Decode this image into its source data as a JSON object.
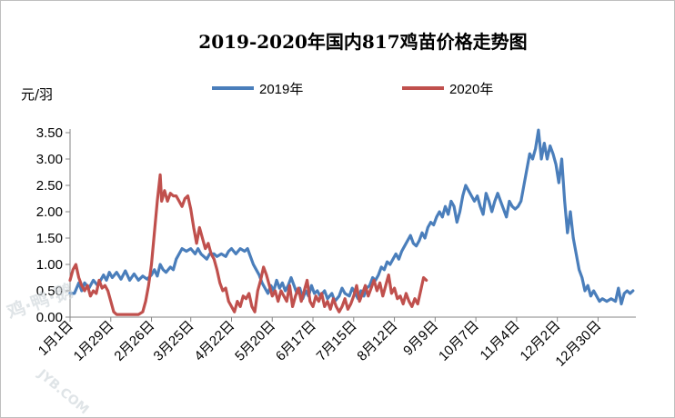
{
  "chart_data": {
    "type": "line",
    "title": "2019-2020年国内817鸡苗价格走势图",
    "ylabel": "元/羽",
    "xlabel": "",
    "ylim": [
      0,
      3.5
    ],
    "y_ticks": [
      "0.00",
      "0.50",
      "1.00",
      "1.50",
      "2.00",
      "2.50",
      "3.00",
      "3.50"
    ],
    "x_ticks": [
      "1月1日",
      "1月29日",
      "2月26日",
      "3月25日",
      "4月22日",
      "5月20日",
      "6月17日",
      "7月15日",
      "8月12日",
      "9月9日",
      "10月7日",
      "11月4日",
      "12月2日",
      "12月30日"
    ],
    "x_tick_days": [
      1,
      29,
      57,
      84,
      112,
      140,
      168,
      196,
      224,
      252,
      280,
      308,
      336,
      364
    ],
    "legend_position": "top",
    "grid": false,
    "series": [
      {
        "name": "2019年",
        "color": "#4a7ebb",
        "points": [
          [
            1,
            0.45
          ],
          [
            4,
            0.45
          ],
          [
            7,
            0.65
          ],
          [
            9,
            0.5
          ],
          [
            11,
            0.65
          ],
          [
            14,
            0.55
          ],
          [
            17,
            0.7
          ],
          [
            20,
            0.6
          ],
          [
            24,
            0.8
          ],
          [
            26,
            0.7
          ],
          [
            28,
            0.85
          ],
          [
            30,
            0.75
          ],
          [
            33,
            0.85
          ],
          [
            36,
            0.72
          ],
          [
            39,
            0.88
          ],
          [
            42,
            0.7
          ],
          [
            45,
            0.82
          ],
          [
            48,
            0.7
          ],
          [
            51,
            0.78
          ],
          [
            54,
            0.72
          ],
          [
            57,
            0.8
          ],
          [
            59,
            0.9
          ],
          [
            61,
            0.78
          ],
          [
            63,
            1.0
          ],
          [
            65,
            0.9
          ],
          [
            67,
            0.85
          ],
          [
            70,
            0.95
          ],
          [
            72,
            0.9
          ],
          [
            74,
            1.1
          ],
          [
            76,
            1.2
          ],
          [
            78,
            1.3
          ],
          [
            81,
            1.25
          ],
          [
            84,
            1.3
          ],
          [
            87,
            1.2
          ],
          [
            89,
            1.3
          ],
          [
            91,
            1.2
          ],
          [
            93,
            1.15
          ],
          [
            95,
            1.1
          ],
          [
            97,
            1.2
          ],
          [
            100,
            1.2
          ],
          [
            102,
            1.15
          ],
          [
            105,
            1.2
          ],
          [
            108,
            1.15
          ],
          [
            110,
            1.25
          ],
          [
            112,
            1.3
          ],
          [
            115,
            1.2
          ],
          [
            118,
            1.3
          ],
          [
            121,
            1.25
          ],
          [
            123,
            1.3
          ],
          [
            125,
            1.15
          ],
          [
            127,
            1.0
          ],
          [
            129,
            0.9
          ],
          [
            131,
            0.8
          ],
          [
            133,
            0.65
          ],
          [
            135,
            0.55
          ],
          [
            137,
            0.45
          ],
          [
            139,
            0.6
          ],
          [
            141,
            0.5
          ],
          [
            143,
            0.7
          ],
          [
            145,
            0.55
          ],
          [
            147,
            0.65
          ],
          [
            149,
            0.5
          ],
          [
            151,
            0.6
          ],
          [
            153,
            0.75
          ],
          [
            155,
            0.6
          ],
          [
            157,
            0.45
          ],
          [
            159,
            0.55
          ],
          [
            161,
            0.35
          ],
          [
            163,
            0.5
          ],
          [
            165,
            0.4
          ],
          [
            167,
            0.6
          ],
          [
            169,
            0.45
          ],
          [
            171,
            0.5
          ],
          [
            173,
            0.4
          ],
          [
            176,
            0.5
          ],
          [
            178,
            0.35
          ],
          [
            181,
            0.45
          ],
          [
            183,
            0.3
          ],
          [
            186,
            0.4
          ],
          [
            188,
            0.55
          ],
          [
            190,
            0.45
          ],
          [
            193,
            0.4
          ],
          [
            195,
            0.55
          ],
          [
            197,
            0.45
          ],
          [
            199,
            0.35
          ],
          [
            201,
            0.5
          ],
          [
            203,
            0.4
          ],
          [
            205,
            0.55
          ],
          [
            207,
            0.6
          ],
          [
            209,
            0.75
          ],
          [
            211,
            0.7
          ],
          [
            213,
            0.8
          ],
          [
            215,
            0.95
          ],
          [
            217,
            0.9
          ],
          [
            219,
            1.05
          ],
          [
            221,
            1.0
          ],
          [
            223,
            1.1
          ],
          [
            225,
            1.2
          ],
          [
            227,
            1.1
          ],
          [
            229,
            1.25
          ],
          [
            231,
            1.35
          ],
          [
            233,
            1.45
          ],
          [
            235,
            1.55
          ],
          [
            237,
            1.4
          ],
          [
            239,
            1.35
          ],
          [
            241,
            1.45
          ],
          [
            243,
            1.6
          ],
          [
            245,
            1.5
          ],
          [
            247,
            1.7
          ],
          [
            249,
            1.8
          ],
          [
            251,
            1.75
          ],
          [
            253,
            1.9
          ],
          [
            255,
            2.0
          ],
          [
            257,
            1.9
          ],
          [
            259,
            2.1
          ],
          [
            261,
            1.95
          ],
          [
            263,
            2.2
          ],
          [
            265,
            2.1
          ],
          [
            267,
            1.8
          ],
          [
            269,
            2.0
          ],
          [
            271,
            2.3
          ],
          [
            273,
            2.5
          ],
          [
            275,
            2.4
          ],
          [
            277,
            2.3
          ],
          [
            279,
            2.2
          ],
          [
            281,
            2.3
          ],
          [
            283,
            2.1
          ],
          [
            285,
            1.95
          ],
          [
            287,
            2.35
          ],
          [
            289,
            2.2
          ],
          [
            291,
            2.0
          ],
          [
            293,
            2.2
          ],
          [
            295,
            2.35
          ],
          [
            297,
            2.2
          ],
          [
            299,
            2.05
          ],
          [
            301,
            1.9
          ],
          [
            303,
            2.2
          ],
          [
            305,
            2.1
          ],
          [
            307,
            2.05
          ],
          [
            309,
            2.1
          ],
          [
            311,
            2.2
          ],
          [
            313,
            2.5
          ],
          [
            315,
            2.8
          ],
          [
            317,
            3.1
          ],
          [
            319,
            3.0
          ],
          [
            321,
            3.2
          ],
          [
            323,
            3.55
          ],
          [
            325,
            3.0
          ],
          [
            327,
            3.3
          ],
          [
            329,
            3.0
          ],
          [
            331,
            3.25
          ],
          [
            333,
            3.1
          ],
          [
            335,
            2.9
          ],
          [
            337,
            2.55
          ],
          [
            339,
            3.0
          ],
          [
            341,
            2.2
          ],
          [
            343,
            1.6
          ],
          [
            345,
            2.0
          ],
          [
            347,
            1.5
          ],
          [
            349,
            1.2
          ],
          [
            351,
            0.9
          ],
          [
            353,
            0.75
          ],
          [
            355,
            0.5
          ],
          [
            357,
            0.6
          ],
          [
            359,
            0.4
          ],
          [
            361,
            0.5
          ],
          [
            363,
            0.4
          ],
          [
            365,
            0.3
          ],
          [
            367,
            0.35
          ],
          [
            370,
            0.3
          ],
          [
            373,
            0.35
          ],
          [
            376,
            0.3
          ],
          [
            378,
            0.55
          ],
          [
            380,
            0.25
          ],
          [
            382,
            0.45
          ],
          [
            384,
            0.5
          ],
          [
            386,
            0.45
          ],
          [
            388,
            0.5
          ]
        ]
      },
      {
        "name": "2020年",
        "color": "#c0504d",
        "points": [
          [
            1,
            0.7
          ],
          [
            3,
            0.9
          ],
          [
            5,
            1.0
          ],
          [
            7,
            0.75
          ],
          [
            9,
            0.6
          ],
          [
            11,
            0.5
          ],
          [
            13,
            0.6
          ],
          [
            15,
            0.4
          ],
          [
            17,
            0.5
          ],
          [
            19,
            0.45
          ],
          [
            21,
            0.7
          ],
          [
            23,
            0.55
          ],
          [
            25,
            0.6
          ],
          [
            27,
            0.5
          ],
          [
            29,
            0.3
          ],
          [
            31,
            0.1
          ],
          [
            33,
            0.05
          ],
          [
            36,
            0.05
          ],
          [
            40,
            0.05
          ],
          [
            44,
            0.05
          ],
          [
            48,
            0.05
          ],
          [
            51,
            0.1
          ],
          [
            53,
            0.3
          ],
          [
            55,
            0.6
          ],
          [
            57,
            1.0
          ],
          [
            59,
            1.6
          ],
          [
            61,
            2.2
          ],
          [
            63,
            2.7
          ],
          [
            64,
            2.2
          ],
          [
            66,
            2.4
          ],
          [
            68,
            2.2
          ],
          [
            70,
            2.35
          ],
          [
            72,
            2.3
          ],
          [
            74,
            2.3
          ],
          [
            76,
            2.2
          ],
          [
            78,
            2.1
          ],
          [
            80,
            2.25
          ],
          [
            82,
            2.3
          ],
          [
            84,
            2.05
          ],
          [
            86,
            1.7
          ],
          [
            88,
            1.4
          ],
          [
            90,
            1.7
          ],
          [
            92,
            1.5
          ],
          [
            94,
            1.3
          ],
          [
            96,
            1.4
          ],
          [
            98,
            1.2
          ],
          [
            100,
            1.1
          ],
          [
            102,
            0.9
          ],
          [
            104,
            0.65
          ],
          [
            106,
            0.5
          ],
          [
            108,
            0.55
          ],
          [
            110,
            0.3
          ],
          [
            112,
            0.2
          ],
          [
            114,
            0.1
          ],
          [
            116,
            0.3
          ],
          [
            118,
            0.2
          ],
          [
            120,
            0.4
          ],
          [
            122,
            0.35
          ],
          [
            124,
            0.45
          ],
          [
            126,
            0.2
          ],
          [
            128,
            0.1
          ],
          [
            130,
            0.5
          ],
          [
            132,
            0.7
          ],
          [
            134,
            0.95
          ],
          [
            136,
            0.8
          ],
          [
            138,
            0.6
          ],
          [
            140,
            0.4
          ],
          [
            142,
            0.5
          ],
          [
            144,
            0.3
          ],
          [
            146,
            0.5
          ],
          [
            148,
            0.4
          ],
          [
            150,
            0.3
          ],
          [
            152,
            0.6
          ],
          [
            154,
            0.2
          ],
          [
            156,
            0.4
          ],
          [
            158,
            0.55
          ],
          [
            160,
            0.3
          ],
          [
            162,
            0.5
          ],
          [
            164,
            0.7
          ],
          [
            166,
            0.3
          ],
          [
            168,
            0.2
          ],
          [
            170,
            0.4
          ],
          [
            172,
            0.3
          ],
          [
            174,
            0.45
          ],
          [
            176,
            0.2
          ],
          [
            178,
            0.3
          ],
          [
            180,
            0.15
          ],
          [
            182,
            0.35
          ],
          [
            184,
            0.2
          ],
          [
            186,
            0.1
          ],
          [
            188,
            0.2
          ],
          [
            190,
            0.35
          ],
          [
            192,
            0.15
          ],
          [
            194,
            0.25
          ],
          [
            196,
            0.4
          ],
          [
            198,
            0.6
          ],
          [
            200,
            0.3
          ],
          [
            202,
            0.45
          ],
          [
            204,
            0.6
          ],
          [
            206,
            0.4
          ],
          [
            208,
            0.55
          ],
          [
            210,
            0.7
          ],
          [
            212,
            0.5
          ],
          [
            214,
            0.65
          ],
          [
            216,
            0.4
          ],
          [
            218,
            0.6
          ],
          [
            220,
            0.8
          ],
          [
            222,
            0.45
          ],
          [
            224,
            0.55
          ],
          [
            226,
            0.35
          ],
          [
            228,
            0.4
          ],
          [
            230,
            0.25
          ],
          [
            232,
            0.45
          ],
          [
            234,
            0.3
          ],
          [
            236,
            0.2
          ],
          [
            238,
            0.35
          ],
          [
            240,
            0.25
          ],
          [
            242,
            0.5
          ],
          [
            244,
            0.75
          ],
          [
            246,
            0.7
          ]
        ]
      }
    ]
  },
  "watermark": {
    "main": "鸡·鸭·鹅",
    "sub": "JYB.COM"
  }
}
